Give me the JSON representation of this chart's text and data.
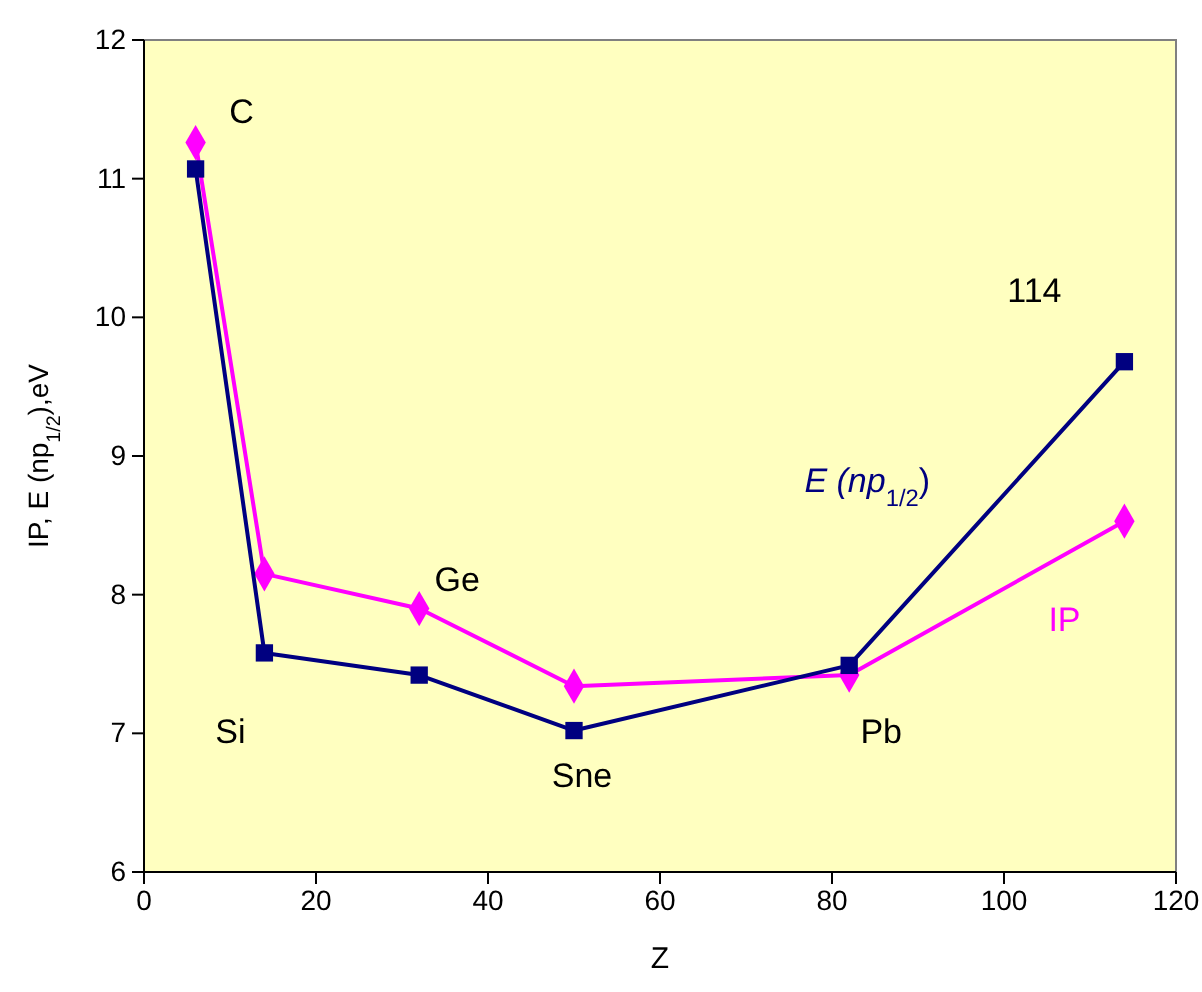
{
  "chart_data": {
    "type": "line",
    "xlabel": "Z",
    "ylabel": "IP, E (np$_{1/2}$),eV",
    "x": [
      6,
      14,
      32,
      50,
      82,
      114
    ],
    "series": [
      {
        "name": "IP",
        "color": "#ff00ff",
        "marker": "diamond",
        "values": [
          11.26,
          8.15,
          7.9,
          7.34,
          7.42,
          8.53
        ]
      },
      {
        "name": "E (np$_{1/2}$)",
        "color": "#000080",
        "marker": "square",
        "values": [
          11.07,
          7.58,
          7.42,
          7.02,
          7.49,
          9.68
        ]
      }
    ],
    "xlim": [
      0,
      120
    ],
    "xticks": [
      0,
      20,
      40,
      60,
      80,
      100,
      120
    ],
    "ylim": [
      6,
      12
    ],
    "yticks": [
      6,
      7,
      8,
      9,
      10,
      11,
      12
    ],
    "grid": false,
    "annotations": [
      {
        "text": "C",
        "x": 6,
        "y": 11.26
      },
      {
        "text": "Si",
        "x": 14,
        "y": 7.58
      },
      {
        "text": "Ge",
        "x": 32,
        "y": 7.9
      },
      {
        "text": "Sne",
        "x": 50,
        "y": 7.02
      },
      {
        "text": "Pb",
        "x": 82,
        "y": 7.49
      },
      {
        "text": "114",
        "x": 114,
        "y": 9.68
      }
    ]
  }
}
